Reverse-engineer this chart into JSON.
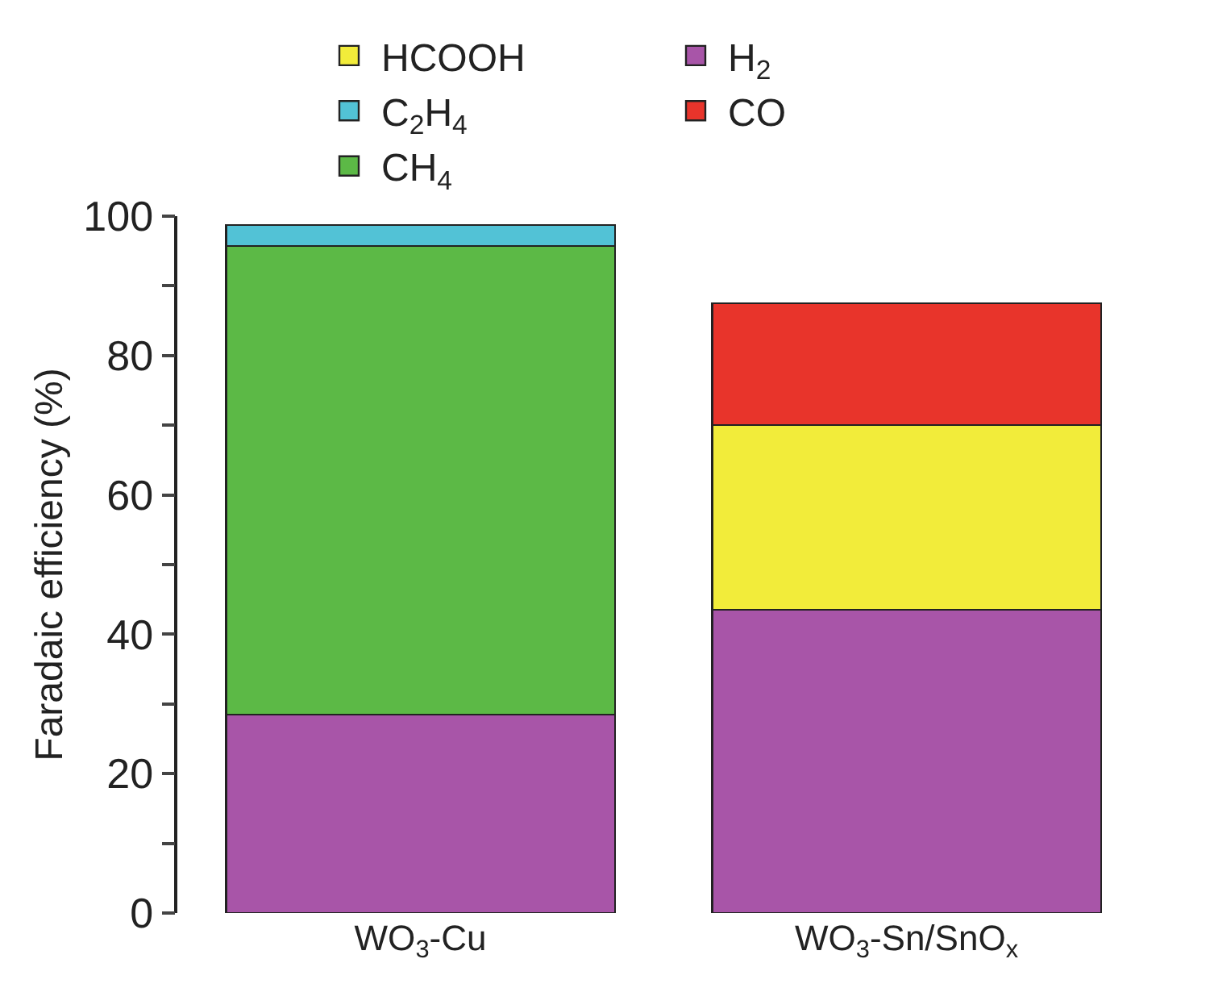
{
  "chart_data": {
    "type": "bar",
    "stacked": true,
    "ylabel": "Faradaic efficiency (%)",
    "categories": [
      "WO$_{3}$-Cu",
      "WO$_{3}$-Sn/SnO$_{x}$"
    ],
    "series": [
      {
        "name": "H$_{2}$",
        "color": "#a855a8",
        "values": [
          28.5,
          43.5
        ]
      },
      {
        "name": "HCOOH",
        "color": "#f2ec3a",
        "values": [
          null,
          26.5
        ]
      },
      {
        "name": "CH$_{4}$",
        "color": "#5cb946",
        "values": [
          67.2,
          null
        ]
      },
      {
        "name": "CO",
        "color": "#e8342b",
        "values": [
          null,
          17.5
        ]
      },
      {
        "name": "C$_{2}$H$_{4}$",
        "color": "#52c2d6",
        "values": [
          3.0,
          null
        ]
      }
    ],
    "ylim": [
      0,
      100
    ],
    "yticks": [
      0,
      {
        "value": 10,
        "label": null
      },
      20,
      {
        "value": 30,
        "label": null
      },
      40,
      {
        "value": 50,
        "label": null
      },
      60,
      {
        "value": 70,
        "label": null
      },
      80,
      {
        "value": 90,
        "label": null
      },
      100
    ],
    "legend": "top"
  }
}
